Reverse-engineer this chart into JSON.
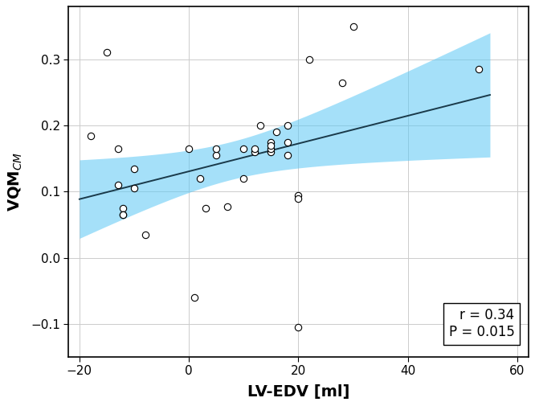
{
  "x_data": [
    -18,
    -15,
    -13,
    -13,
    -12,
    -12,
    -12,
    -10,
    -10,
    -8,
    0,
    1,
    2,
    3,
    5,
    5,
    7,
    10,
    10,
    12,
    12,
    13,
    15,
    15,
    15,
    15,
    16,
    18,
    18,
    18,
    20,
    20,
    20,
    22,
    28,
    30,
    53
  ],
  "y_data": [
    0.185,
    0.311,
    0.165,
    0.11,
    0.075,
    0.065,
    0.065,
    0.135,
    0.105,
    0.035,
    0.165,
    -0.06,
    0.12,
    0.075,
    0.155,
    0.165,
    0.078,
    0.12,
    0.165,
    0.16,
    0.165,
    0.2,
    0.16,
    0.165,
    0.175,
    0.17,
    0.19,
    0.155,
    0.175,
    0.2,
    0.095,
    0.09,
    -0.105,
    0.3,
    0.265,
    0.35,
    0.285
  ],
  "xlim": [
    -22,
    62
  ],
  "ylim": [
    -0.15,
    0.38
  ],
  "xticks": [
    -20,
    0,
    20,
    40,
    60
  ],
  "yticks": [
    -0.1,
    0.0,
    0.1,
    0.2,
    0.3
  ],
  "xlabel": "LV-EDV [ml]",
  "ylabel": "VQM$_{CM}$",
  "r_display": "0.34",
  "p_display": "0.015",
  "ci_color": "#5BC8F5",
  "ci_alpha": 0.55,
  "line_color": "#1a3a4a",
  "marker_facecolor": "white",
  "marker_edgecolor": "black",
  "marker_size": 6,
  "marker_linewidth": 0.8,
  "annotation_facecolor": "white",
  "annotation_edgecolor": "black",
  "grid_color": "#cccccc",
  "background_color": "white",
  "spine_color": "black",
  "figsize": [
    6.66,
    5.05
  ],
  "dpi": 100
}
